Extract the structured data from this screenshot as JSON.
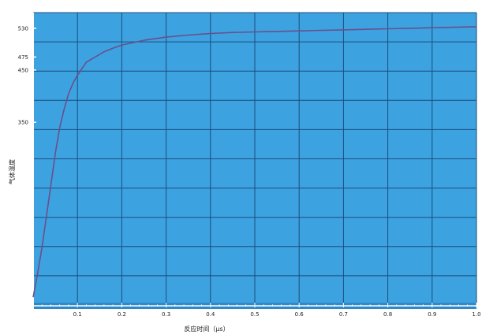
{
  "colors": {
    "background": "#ffffff",
    "plot_area": "#3da2e0",
    "grid": "#1a4e7c",
    "curve": "#6b4f8c",
    "axis_bar": "#2f88c8",
    "text": "#222222"
  },
  "chart_data": {
    "type": "line",
    "title": "",
    "xlabel": "反应时间（μs）",
    "ylabel": "气体温度",
    "xlim": [
      0,
      1
    ],
    "ylim": [
      0,
      560
    ],
    "grid": true,
    "x_ticks": [
      {
        "value": 0.1,
        "label": "0.1"
      },
      {
        "value": 0.2,
        "label": "0.2"
      },
      {
        "value": 0.3,
        "label": "0.3"
      },
      {
        "value": 0.4,
        "label": "0.4"
      },
      {
        "value": 0.5,
        "label": "0.5"
      },
      {
        "value": 0.6,
        "label": "0.6"
      },
      {
        "value": 0.7,
        "label": "0.7"
      },
      {
        "value": 0.8,
        "label": "0.8"
      },
      {
        "value": 0.9,
        "label": "0.9"
      },
      {
        "value": 1.0,
        "label": "1.0"
      }
    ],
    "y_ticks": [
      {
        "value": 350,
        "label": "350"
      },
      {
        "value": 450,
        "label": "450"
      },
      {
        "value": 475,
        "label": "475"
      },
      {
        "value": 530,
        "label": "530"
      }
    ],
    "series": [
      {
        "x": [
          0.0,
          0.01,
          0.02,
          0.03,
          0.04,
          0.05,
          0.06,
          0.07,
          0.08,
          0.09,
          0.1,
          0.12,
          0.14,
          0.16,
          0.18,
          0.2,
          0.25,
          0.3,
          0.35,
          0.4,
          0.45,
          0.5,
          0.55,
          0.6,
          0.65,
          0.7,
          0.75,
          0.8,
          0.85,
          0.9,
          0.95,
          1.0
        ],
        "y": [
          15,
          60,
          110,
          170,
          230,
          290,
          340,
          375,
          405,
          425,
          440,
          465,
          475,
          485,
          492,
          498,
          507,
          513,
          517,
          520,
          522,
          523,
          524,
          525,
          526,
          527,
          528,
          529,
          530,
          531,
          532,
          533
        ]
      }
    ]
  }
}
